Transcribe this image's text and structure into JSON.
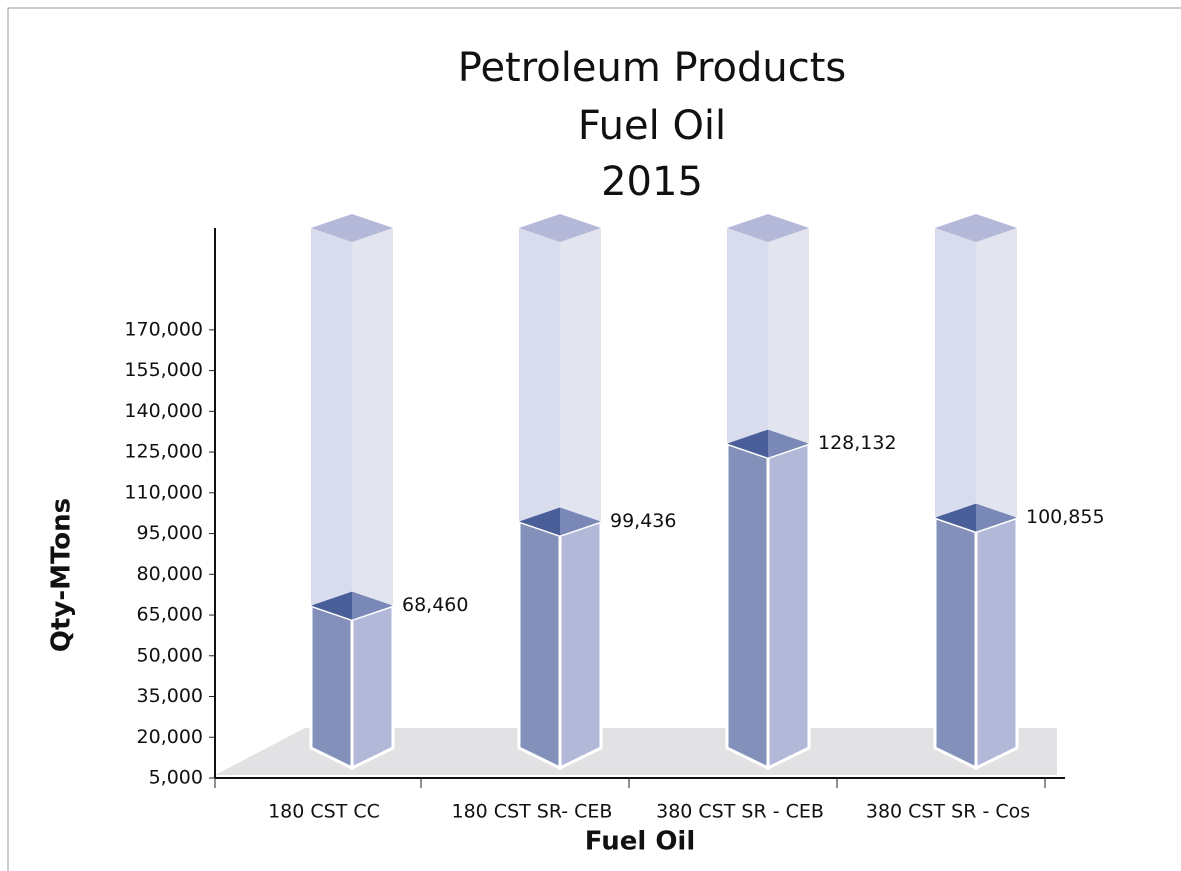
{
  "chart_data": {
    "type": "bar",
    "title": [
      "Petroleum Products",
      "Fuel Oil",
      "2015"
    ],
    "x_label": "Fuel  Oil",
    "y_label": "Qty-MTons",
    "categories": [
      "180 CST CC",
      "180 CST SR- CEB",
      "380 CST SR - CEB",
      "380 CST SR - Cos"
    ],
    "values": [
      68460,
      99436,
      128132,
      100855
    ],
    "value_labels": [
      "68,460",
      "99,436",
      "128,132",
      "100,855"
    ],
    "color": "#8390b9",
    "ylim": [
      5000,
      207500
    ],
    "yticks": [
      {
        "value": 5000,
        "label": "5,000"
      },
      {
        "value": 20000,
        "label": "20,000"
      },
      {
        "value": 35000,
        "label": "35,000"
      },
      {
        "value": 50000,
        "label": "50,000"
      },
      {
        "value": 65000,
        "label": "65,000"
      },
      {
        "value": 80000,
        "label": "80,000"
      },
      {
        "value": 95000,
        "label": "95,000"
      },
      {
        "value": 110000,
        "label": "110,000"
      },
      {
        "value": 125000,
        "label": "125,000"
      },
      {
        "value": 140000,
        "label": "140,000"
      },
      {
        "value": 155000,
        "label": "155,000"
      },
      {
        "value": 170000,
        "label": "170,000"
      }
    ],
    "grid": false
  }
}
